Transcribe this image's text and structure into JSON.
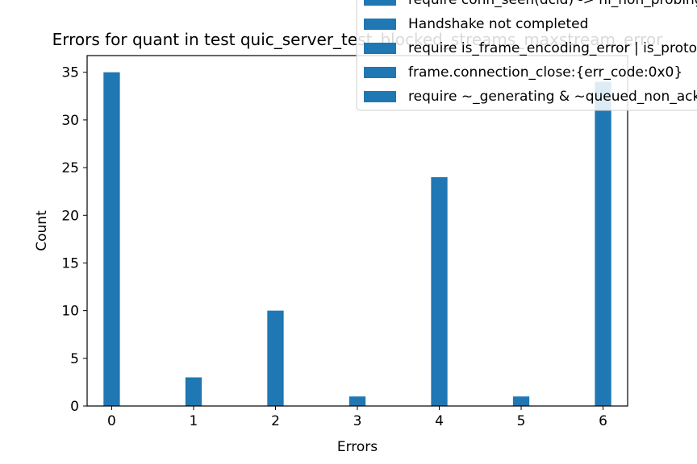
{
  "chart_data": {
    "type": "bar",
    "title": "Errors for quant in test quic_server_test_blocked_streams_maxstream_error",
    "xlabel": "Errors",
    "ylabel": "Count",
    "xlim": [
      -0.3,
      6.3
    ],
    "ylim": [
      0,
      36.75
    ],
    "xticks": [
      "0",
      "1",
      "2",
      "3",
      "4",
      "5",
      "6"
    ],
    "yticks": [
      "0",
      "5",
      "10",
      "15",
      "20",
      "25",
      "30",
      "35"
    ],
    "bar_color": "#1f77b4",
    "legend_placement": "top-right",
    "series": [
      {
        "name": "require conn_seen(dcid) -> hi_non_probing",
        "x": 0,
        "value": 35
      },
      {
        "name": "Handshake not completed",
        "x": 1,
        "value": 3
      },
      {
        "name": "require is_frame_encoding_error | is_protocol_violation",
        "x": 2,
        "value": 10
      },
      {
        "name": "frame.connection_close:{err_code:0x0}",
        "x": 3,
        "value": 1
      },
      {
        "name": "require ~_generating & ~queued_non_ack",
        "x": 4,
        "value": 24
      },
      {
        "name": "",
        "x": 5,
        "value": 1
      },
      {
        "name": "",
        "x": 6,
        "value": 34
      }
    ]
  }
}
